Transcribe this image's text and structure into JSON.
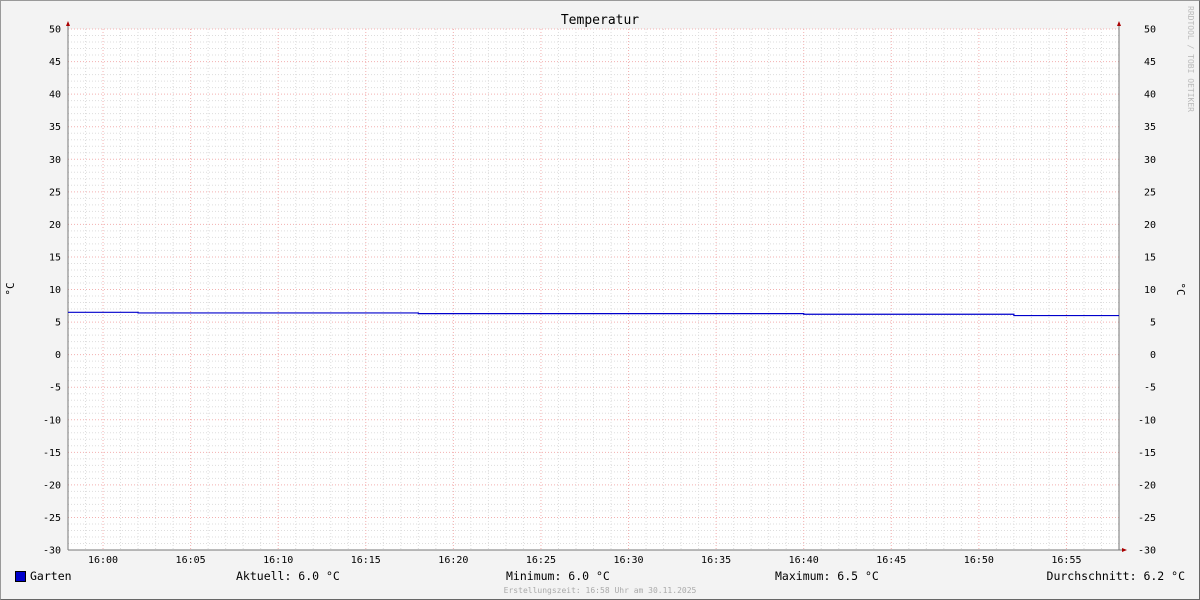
{
  "chart_data": {
    "type": "line",
    "title": "Temperatur",
    "ylabel": "°C",
    "ylabel_right": "°C",
    "ylim": [
      -30,
      50
    ],
    "yticks": [
      50,
      45,
      40,
      35,
      30,
      25,
      20,
      15,
      10,
      5,
      0,
      -5,
      -10,
      -15,
      -20,
      -25,
      -30
    ],
    "xlim": [
      "15:58",
      "16:58"
    ],
    "xticks": [
      "16:00",
      "16:05",
      "16:10",
      "16:15",
      "16:20",
      "16:25",
      "16:30",
      "16:35",
      "16:40",
      "16:45",
      "16:50",
      "16:55"
    ],
    "grid": true,
    "series": [
      {
        "name": "Garten",
        "color": "#0000cc",
        "step": true,
        "x": [
          "15:58",
          "16:02",
          "16:18",
          "16:40",
          "16:52",
          "16:58"
        ],
        "y": [
          6.5,
          6.4,
          6.3,
          6.2,
          6.0,
          6.0
        ]
      }
    ]
  },
  "legend": {
    "series": "Garten",
    "current": "Aktuell: 6.0 °C",
    "min": "Minimum: 6.0 °C",
    "max": "Maximum: 6.5 °C",
    "avg": "Durchschnitt: 6.2 °C"
  },
  "footer": "Erstellungszeit: 16:58 Uhr am 30.11.2025",
  "watermark": "RRDTOOL / TOBI OETIKER"
}
